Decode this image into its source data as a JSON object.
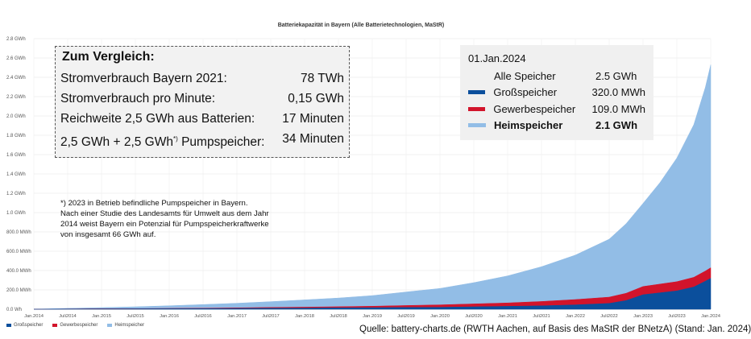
{
  "chart_data": {
    "type": "area",
    "stacked": true,
    "title": "Batteriekapazität in Bayern (Alle Batterietechnologien, MaStR)",
    "y_tick_labels": [
      "0.0 Wh",
      "200.0 MWh",
      "400.0 MWh",
      "600.0 MWh",
      "800.0 MWh",
      "1.0 GWh",
      "1.2 GWh",
      "1.4 GWh",
      "1.6 GWh",
      "1.8 GWh",
      "2.0 GWh",
      "2.2 GWh",
      "2.4 GWh",
      "2.6 GWh",
      "2.8 GWh"
    ],
    "y_unit": "GWh",
    "ylim": [
      0,
      2.8
    ],
    "x_tick_labels": [
      "Jan.2014",
      "Juli2014",
      "Jan.2015",
      "Juli2015",
      "Jan.2016",
      "Juli2016",
      "Jan.2017",
      "Juli2017",
      "Jan.2018",
      "Juli2018",
      "Jan.2019",
      "Juli2019",
      "Jan.2020",
      "Juli2020",
      "Jan.2021",
      "Juli2021",
      "Jan.2022",
      "Juli2022",
      "Jan.2023",
      "Juli2023",
      "Jan.2024"
    ],
    "x_unit": "year",
    "x": [
      2014.0,
      2014.5,
      2015.0,
      2015.5,
      2016.0,
      2016.5,
      2017.0,
      2017.5,
      2018.0,
      2018.5,
      2019.0,
      2019.5,
      2020.0,
      2020.5,
      2021.0,
      2021.5,
      2022.0,
      2022.5,
      2022.75,
      2023.0,
      2023.25,
      2023.5,
      2023.75,
      2023.92,
      2024.0
    ],
    "series": [
      {
        "name": "Großspeicher",
        "color": "#0b4f9c",
        "values": [
          0.0,
          0.002,
          0.003,
          0.004,
          0.005,
          0.006,
          0.008,
          0.01,
          0.012,
          0.014,
          0.016,
          0.018,
          0.02,
          0.025,
          0.03,
          0.035,
          0.045,
          0.06,
          0.09,
          0.15,
          0.17,
          0.19,
          0.23,
          0.29,
          0.32
        ]
      },
      {
        "name": "Gewerbespeicher",
        "color": "#d2142b",
        "values": [
          0.0,
          0.001,
          0.002,
          0.002,
          0.003,
          0.004,
          0.006,
          0.008,
          0.01,
          0.012,
          0.015,
          0.02,
          0.025,
          0.03,
          0.035,
          0.045,
          0.055,
          0.065,
          0.075,
          0.085,
          0.09,
          0.095,
          0.1,
          0.105,
          0.109
        ]
      },
      {
        "name": "Heimspeicher",
        "color": "#92bde6",
        "values": [
          0.0,
          0.006,
          0.012,
          0.019,
          0.028,
          0.038,
          0.048,
          0.06,
          0.075,
          0.09,
          0.11,
          0.14,
          0.17,
          0.22,
          0.28,
          0.36,
          0.46,
          0.6,
          0.72,
          0.86,
          1.05,
          1.28,
          1.58,
          1.9,
          2.1
        ]
      }
    ],
    "legend": "bottom-left"
  },
  "comparison": {
    "title": "Zum Vergleich:",
    "rows": [
      {
        "label": "Stromverbrauch Bayern 2021:",
        "value": "78 TWh"
      },
      {
        "label": "Stromverbrauch pro Minute:",
        "value": "0,15 GWh"
      },
      {
        "label": "Reichweite 2,5 GWh aus Batterien:",
        "value": "17 Minuten"
      },
      {
        "label_pre": "2,5 GWh + 2,5 GWh",
        "label_sup": "*)",
        "label_post": " Pumpspeicher:",
        "value": "34 Minuten"
      }
    ]
  },
  "footnote": {
    "lines": [
      "*) 2023 in Betrieb befindliche Pumpspeicher in Bayern.",
      "Nach einer Studie des Landesamts für Umwelt aus dem Jahr",
      "2014 weist Bayern ein Potenzial für Pumpspeicherkraftwerke",
      "von insgesamt 66 GWh auf."
    ]
  },
  "info_box": {
    "date": "01.Jan.2024",
    "rows": [
      {
        "name": "Alle Speicher",
        "value": "2.5 GWh",
        "color": ""
      },
      {
        "name": "Großspeicher",
        "value": "320.0 MWh",
        "color": "#0b4f9c"
      },
      {
        "name": "Gewerbespeicher",
        "value": "109.0 MWh",
        "color": "#d2142b"
      },
      {
        "name": "Heimspeicher",
        "value": "2.1 GWh",
        "color": "#92bde6"
      }
    ]
  },
  "legend_items": [
    {
      "name": "Großspeicher",
      "color": "#0b4f9c"
    },
    {
      "name": "Gewerbespeicher",
      "color": "#d2142b"
    },
    {
      "name": "Heimspeicher",
      "color": "#92bde6"
    }
  ],
  "source": "Quelle: battery-charts.de (RWTH Aachen, auf Basis des MaStR der BNetzA) (Stand: Jan. 2024)"
}
